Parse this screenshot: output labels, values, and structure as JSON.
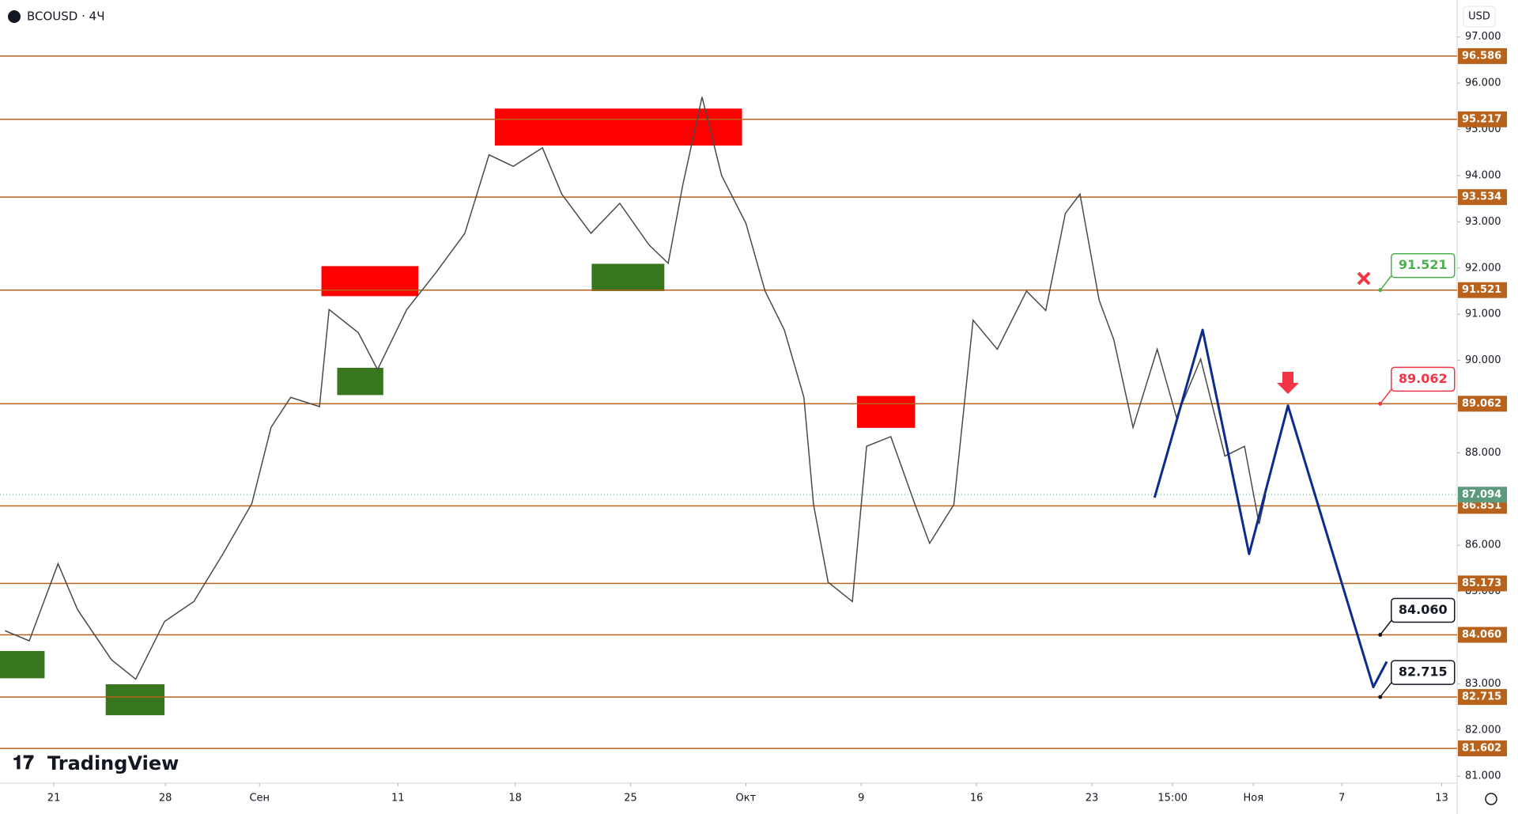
{
  "header": {
    "symbol": "BCOUSD · 4Ч",
    "currency": "USD",
    "logo": "TradingView"
  },
  "chart_data": {
    "type": "line",
    "x": [
      1.3,
      7.6,
      15.1,
      20.2,
      29,
      35.3,
      42.8,
      50.4,
      57.9,
      65.5,
      70.5,
      75.6,
      83.1,
      85.6,
      93.2,
      98.2,
      105.8,
      113.4,
      120.9,
      127.2,
      133.5,
      141.1,
      146.1,
      153.7,
      161.2,
      168.8,
      173.8,
      177.6,
      182.6,
      187.7,
      194,
      199,
      204,
      209.1,
      211.6,
      215.4,
      221.7,
      225.4,
      231.7,
      238,
      241.8,
      248.1,
      253.1,
      259.4,
      267,
      272,
      277.1,
      280.9,
      285.9,
      289.7,
      294.7,
      301,
      306,
      312.3,
      318.6,
      323.7,
      327.5,
      329.2
    ],
    "values": [
      84.15,
      83.93,
      85.6,
      84.6,
      83.52,
      83.1,
      84.35,
      84.78,
      85.8,
      86.9,
      88.55,
      89.2,
      89.0,
      91.1,
      90.6,
      89.8,
      91.1,
      91.9,
      92.75,
      94.45,
      94.2,
      94.6,
      93.6,
      92.75,
      93.4,
      92.5,
      92.1,
      93.8,
      95.7,
      94.0,
      92.97,
      91.5,
      90.66,
      89.2,
      86.88,
      85.2,
      84.78,
      88.14,
      88.35,
      86.88,
      86.04,
      86.88,
      90.87,
      90.24,
      91.5,
      91.08,
      93.18,
      93.6,
      91.3,
      90.45,
      88.55,
      90.24,
      88.77,
      90.03,
      87.93,
      88.14,
      86.46,
      87.09
    ],
    "color": "#4a4a4a",
    "xlim": [
      0,
      379
    ],
    "ylim": [
      80.85,
      97.8
    ],
    "xticks": [
      {
        "value": 14,
        "label": "21"
      },
      {
        "value": 43,
        "label": "28"
      },
      {
        "value": 67.5,
        "label": "Сен"
      },
      {
        "value": 103.5,
        "label": "11"
      },
      {
        "value": 134,
        "label": "18"
      },
      {
        "value": 164,
        "label": "25"
      },
      {
        "value": 194,
        "label": "Окт"
      },
      {
        "value": 224,
        "label": "9"
      },
      {
        "value": 254,
        "label": "16"
      },
      {
        "value": 284,
        "label": "23"
      },
      {
        "value": 305,
        "label": "15:00"
      },
      {
        "value": 326,
        "label": "Ноя"
      },
      {
        "value": 349,
        "label": "7"
      },
      {
        "value": 375,
        "label": "13"
      }
    ],
    "yticks": [
      {
        "value": 97,
        "label": "97.000"
      },
      {
        "value": 96,
        "label": "96.000"
      },
      {
        "value": 95,
        "label": "95.000"
      },
      {
        "value": 94,
        "label": "94.000"
      },
      {
        "value": 93,
        "label": "93.000"
      },
      {
        "value": 92,
        "label": "92.000"
      },
      {
        "value": 91,
        "label": "91.000"
      },
      {
        "value": 90,
        "label": "90.000"
      },
      {
        "value": 89,
        "label": "89.000"
      },
      {
        "value": 88,
        "label": "88.000"
      },
      {
        "value": 87,
        "label": "87.000"
      },
      {
        "value": 86,
        "label": "86.000"
      },
      {
        "value": 85,
        "label": "85.000"
      },
      {
        "value": 84,
        "label": "84.000"
      },
      {
        "value": 83,
        "label": "83.000"
      },
      {
        "value": 82,
        "label": "82.000"
      },
      {
        "value": 81,
        "label": "81.000"
      }
    ],
    "levels": [
      96.586,
      95.217,
      93.534,
      91.521,
      89.062,
      86.851,
      85.173,
      {
        "value": 84.06,
        "label": "84.060"
      },
      82.715,
      81.602
    ],
    "level_color": "#b8621b",
    "current_price": 87.094,
    "current_color": "#5b9a7a",
    "zones": [
      {
        "x": [
          128.7,
          193
        ],
        "y": [
          94.65,
          95.45
        ],
        "color": "#ff0000"
      },
      {
        "x": [
          83.6,
          108.8
        ],
        "y": [
          91.39,
          92.04
        ],
        "color": "#ff0000"
      },
      {
        "x": [
          222.9,
          238
        ],
        "y": [
          88.54,
          89.23
        ],
        "color": "#ff0000"
      },
      {
        "x": [
          0,
          11.6
        ],
        "y": [
          83.12,
          83.71
        ],
        "color": "#38761d"
      },
      {
        "x": [
          27.5,
          42.8
        ],
        "y": [
          82.32,
          82.99
        ],
        "color": "#38761d"
      },
      {
        "x": [
          87.7,
          99.7
        ],
        "y": [
          89.25,
          89.84
        ],
        "color": "#38761d"
      },
      {
        "x": [
          153.9,
          172.8
        ],
        "y": [
          91.5,
          92.09
        ],
        "color": "#38761d"
      }
    ],
    "projection": {
      "x": [
        300.3,
        312.8,
        324.9,
        335,
        357.2,
        360.7
      ],
      "values": [
        87.03,
        90.66,
        85.81,
        89.02,
        82.93,
        83.48
      ],
      "color": "#0d2b8c"
    },
    "callouts": [
      {
        "x": 359,
        "value": 91.521,
        "label": "91.521",
        "color": "#4caf50"
      },
      {
        "x": 359,
        "value": 89.062,
        "label": "89.062",
        "color": "#f23645"
      },
      {
        "x": 359,
        "value": 84.06,
        "label": "84.060",
        "color": "#131722"
      },
      {
        "x": 359,
        "value": 82.715,
        "label": "82.715",
        "color": "#131722"
      }
    ]
  }
}
